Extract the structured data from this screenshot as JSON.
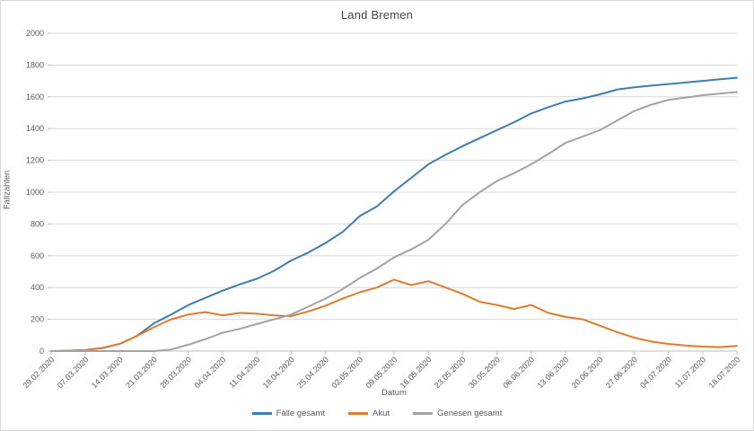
{
  "styles": {
    "background": "#FFFFFF",
    "border_color": "#D9D9D9",
    "gridline_color": "#D9D9D9",
    "axis_line_color": "#BFBFBF",
    "tick_text_color": "#595959",
    "title_color": "#444444"
  },
  "chart_data": {
    "type": "line",
    "title": "Land Bremen",
    "xlabel": "Datum",
    "ylabel": "Fallzahlen",
    "ylim": [
      0,
      2000
    ],
    "ytick_step": 200,
    "grid": "horizontal",
    "legend_position": "bottom",
    "categories": [
      "29.02.2020",
      "07.03.2020",
      "14.03.2020",
      "21.03.2020",
      "28.03.2020",
      "04.04.2020",
      "11.04.2020",
      "18.04.2020",
      "25.04.2020",
      "02.05.2020",
      "09.05.2020",
      "16.05.2020",
      "23.05.2020",
      "30.05.2020",
      "06.06.2020",
      "13.06.2020",
      "20.06.2020",
      "27.06.2020",
      "04.07.2020",
      "11.07.2020",
      "18.07.2020"
    ],
    "points_per_category_interval": 2,
    "series": [
      {
        "name": "Fälle gesamt",
        "color": "#3E7CB1",
        "values": [
          0,
          2,
          6,
          20,
          45,
          95,
          175,
          230,
          290,
          335,
          380,
          420,
          455,
          505,
          570,
          620,
          680,
          750,
          850,
          910,
          1005,
          1090,
          1175,
          1235,
          1290,
          1340,
          1390,
          1440,
          1495,
          1535,
          1570,
          1590,
          1615,
          1645,
          1660,
          1670,
          1680,
          1690,
          1700,
          1710,
          1720
        ]
      },
      {
        "name": "Akut",
        "color": "#DD7B2E",
        "values": [
          0,
          2,
          6,
          20,
          45,
          95,
          150,
          200,
          230,
          245,
          225,
          240,
          235,
          225,
          220,
          250,
          285,
          330,
          370,
          400,
          450,
          415,
          440,
          400,
          360,
          310,
          290,
          265,
          290,
          240,
          215,
          200,
          160,
          120,
          85,
          60,
          45,
          35,
          28,
          25,
          32
        ]
      },
      {
        "name": "Genesen gesamt",
        "color": "#A3A3A3",
        "values": [
          0,
          0,
          0,
          0,
          0,
          0,
          0,
          10,
          40,
          75,
          115,
          140,
          170,
          200,
          230,
          280,
          330,
          390,
          460,
          520,
          590,
          640,
          700,
          800,
          920,
          1000,
          1070,
          1120,
          1175,
          1240,
          1310,
          1350,
          1390,
          1450,
          1510,
          1550,
          1580,
          1595,
          1610,
          1620,
          1630
        ]
      }
    ]
  }
}
